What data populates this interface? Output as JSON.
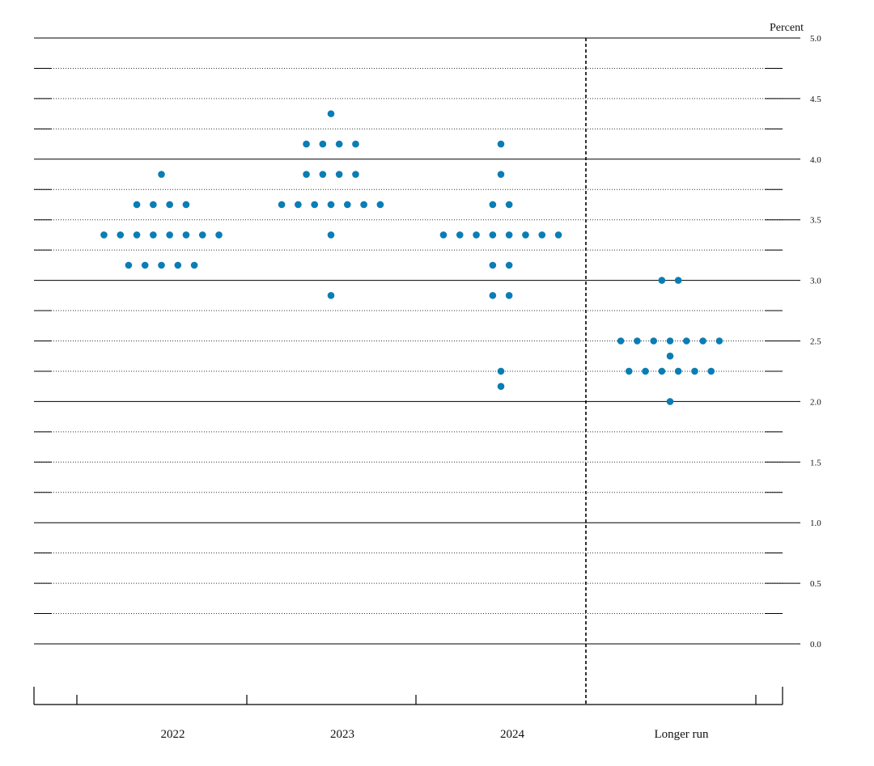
{
  "chart_data": {
    "type": "scatter",
    "title": "",
    "ylabel": "Percent",
    "xlabel": "",
    "ylim": [
      0,
      5.0
    ],
    "yticks": [
      "0.0",
      "0.5",
      "1.0",
      "1.5",
      "2.0",
      "2.5",
      "3.0",
      "3.5",
      "4.0",
      "4.5",
      "5.0"
    ],
    "grid": true,
    "categories": [
      "2022",
      "2023",
      "2024",
      "Longer run"
    ],
    "dot_color": "#0a7db4",
    "dots": [
      {
        "category": "2022",
        "rates": [
          {
            "y": 3.875,
            "count": 1
          },
          {
            "y": 3.625,
            "count": 4
          },
          {
            "y": 3.375,
            "count": 8
          },
          {
            "y": 3.125,
            "count": 5
          }
        ]
      },
      {
        "category": "2023",
        "rates": [
          {
            "y": 4.375,
            "count": 1
          },
          {
            "y": 4.125,
            "count": 4
          },
          {
            "y": 3.875,
            "count": 4
          },
          {
            "y": 3.625,
            "count": 7
          },
          {
            "y": 3.375,
            "count": 1
          },
          {
            "y": 2.875,
            "count": 1
          }
        ]
      },
      {
        "category": "2024",
        "rates": [
          {
            "y": 4.125,
            "count": 1
          },
          {
            "y": 3.875,
            "count": 1
          },
          {
            "y": 3.625,
            "count": 2
          },
          {
            "y": 3.375,
            "count": 8
          },
          {
            "y": 3.125,
            "count": 2
          },
          {
            "y": 2.875,
            "count": 2
          },
          {
            "y": 2.25,
            "count": 1
          },
          {
            "y": 2.125,
            "count": 1
          }
        ]
      },
      {
        "category": "Longer run",
        "rates": [
          {
            "y": 3.0,
            "count": 2
          },
          {
            "y": 2.5,
            "count": 7
          },
          {
            "y": 2.375,
            "count": 1
          },
          {
            "y": 2.25,
            "count": 6
          },
          {
            "y": 2.0,
            "count": 1
          }
        ]
      }
    ]
  }
}
